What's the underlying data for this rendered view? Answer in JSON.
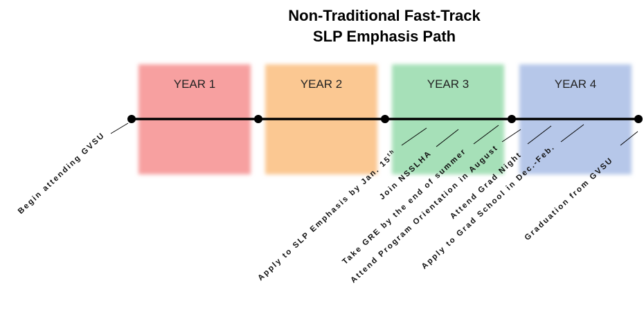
{
  "title": {
    "line1": "Non-Traditional Fast-Track",
    "line2": "SLP Emphasis Path"
  },
  "years": [
    "YEAR 1",
    "YEAR 2",
    "YEAR 3",
    "YEAR 4"
  ],
  "milestones": [
    {
      "label": "Begin attending GVSU"
    },
    {
      "label": "Apply to SLP Emphasis by Jan. 15",
      "sup": "th"
    },
    {
      "label": "Join NSSLHA"
    },
    {
      "label": "Take GRE by the end of summer"
    },
    {
      "label": "Attend Program Orientation in August"
    },
    {
      "label": "Attend Grad Night"
    },
    {
      "label": "Apply to Grad School in Dec.-Feb."
    },
    {
      "label": "Graduation from GVSU"
    }
  ]
}
